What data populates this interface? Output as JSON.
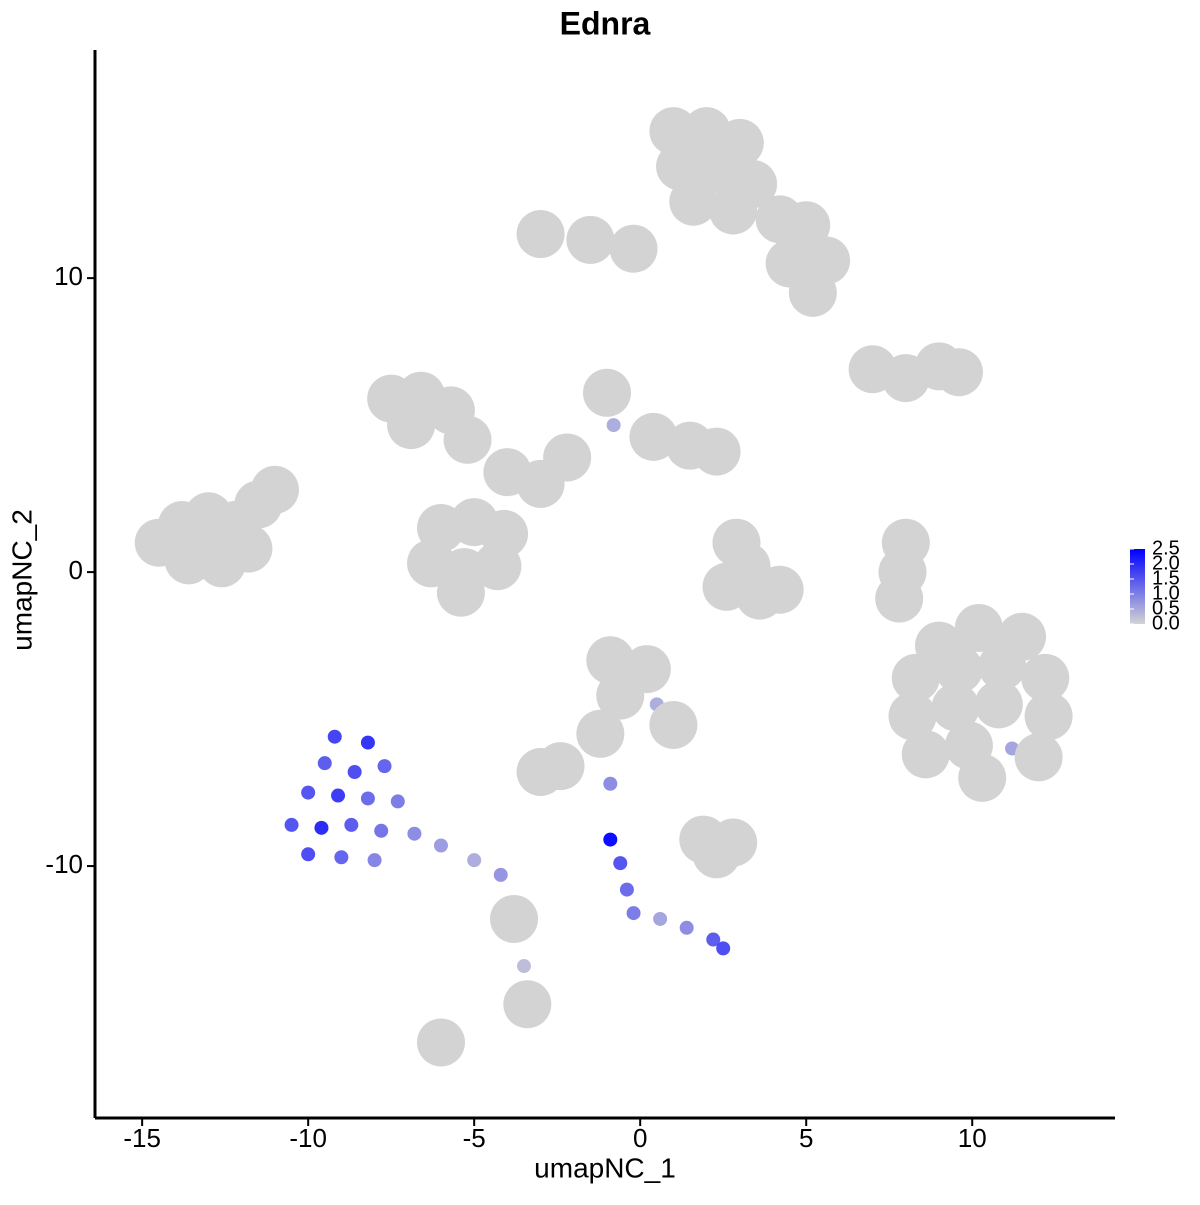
{
  "chart_data": {
    "type": "scatter",
    "title": "Ednra",
    "x_label": "umapNC_1",
    "y_label": "umapNC_2",
    "x": [
      -14.5,
      -13.8,
      -13.0,
      -12.2,
      -11.5,
      -13.6,
      -12.6,
      -11.8,
      -12.9,
      -11.0,
      1.0,
      2.0,
      3.0,
      1.2,
      2.4,
      3.4,
      1.6,
      2.8,
      4.2,
      5.0,
      5.6,
      5.2,
      -3.0,
      -1.5,
      -0.2,
      4.5,
      -7.5,
      -6.6,
      -5.7,
      -6.9,
      -5.2,
      -6.0,
      -5.0,
      -4.1,
      -6.3,
      -5.3,
      -4.3,
      -5.4,
      -4.0,
      -3.0,
      -2.2,
      -1.0,
      -0.8,
      0.4,
      1.5,
      2.3,
      9.0,
      10.2,
      11.5,
      8.3,
      9.6,
      10.9,
      12.2,
      8.2,
      9.5,
      10.8,
      12.3,
      8.6,
      9.9,
      11.2,
      12.0,
      10.3,
      7.0,
      8.0,
      9.0,
      9.6,
      8.0,
      7.9,
      7.8,
      2.9,
      3.2,
      2.6,
      3.6,
      4.2,
      -0.9,
      0.2,
      -0.6,
      0.5,
      1.0,
      -1.2,
      -2.4,
      -3.0,
      1.9,
      2.8,
      2.3,
      -0.9,
      -9.2,
      -8.2,
      -9.5,
      -8.6,
      -7.7,
      -10.0,
      -9.1,
      -8.2,
      -7.3,
      -10.5,
      -9.6,
      -8.7,
      -7.8,
      -6.8,
      -10.0,
      -9.0,
      -8.0,
      -6.0,
      -5.0,
      -4.2,
      -3.8,
      -3.5,
      -3.4,
      -6.0,
      -0.9,
      -0.6,
      -0.4,
      -0.2,
      0.6,
      1.4,
      2.2,
      2.5
    ],
    "y": [
      1.0,
      1.6,
      1.9,
      1.6,
      2.3,
      0.4,
      0.3,
      0.8,
      1.1,
      2.8,
      15.0,
      15.0,
      14.6,
      13.8,
      13.7,
      13.2,
      12.6,
      12.3,
      12.0,
      11.8,
      10.6,
      9.5,
      11.5,
      11.3,
      11.0,
      10.5,
      5.9,
      6.0,
      5.5,
      5.0,
      4.5,
      1.5,
      1.7,
      1.3,
      0.3,
      0.0,
      0.2,
      -0.7,
      3.4,
      3.0,
      3.9,
      6.1,
      5.0,
      4.6,
      4.3,
      4.1,
      -2.5,
      -1.9,
      -2.2,
      -3.6,
      -3.3,
      -3.2,
      -3.6,
      -4.9,
      -4.6,
      -4.5,
      -4.9,
      -6.2,
      -5.9,
      -6.0,
      -6.3,
      -7.0,
      6.9,
      6.6,
      7.0,
      6.8,
      1.0,
      0.0,
      -0.9,
      1.0,
      0.2,
      -0.5,
      -0.8,
      -0.6,
      -3.0,
      -3.3,
      -4.2,
      -4.5,
      -5.2,
      -5.5,
      -6.6,
      -6.8,
      -9.1,
      -9.2,
      -9.6,
      -7.2,
      -5.6,
      -5.8,
      -6.5,
      -6.8,
      -6.6,
      -7.5,
      -7.6,
      -7.7,
      -7.8,
      -8.6,
      -8.7,
      -8.6,
      -8.8,
      -8.9,
      -9.6,
      -9.7,
      -9.8,
      -9.3,
      -9.8,
      -10.3,
      -11.8,
      -13.4,
      -14.7,
      -16.0,
      -9.1,
      -9.9,
      -10.8,
      -11.6,
      -11.8,
      -12.1,
      -12.5,
      -12.8
    ],
    "values": [
      0,
      0,
      0,
      0,
      0,
      0,
      0,
      0,
      0,
      0,
      0,
      0,
      0,
      0,
      0,
      0,
      0,
      0,
      0,
      0,
      0,
      0,
      0,
      0,
      0,
      0,
      0,
      0,
      0,
      0,
      0,
      0,
      0,
      0,
      0,
      0,
      0,
      0,
      0,
      0,
      0,
      0,
      0.5,
      0,
      0,
      0,
      0,
      0,
      0,
      0,
      0,
      0,
      0,
      0,
      0,
      0,
      0,
      0,
      0,
      0.6,
      0,
      0,
      0,
      0,
      0,
      0,
      0,
      0,
      0,
      0,
      0,
      0,
      0,
      0,
      0,
      0,
      0,
      0.5,
      0,
      0,
      0,
      0,
      0,
      0,
      0,
      0.9,
      1.8,
      2.0,
      1.5,
      1.7,
      1.4,
      1.6,
      1.9,
      1.3,
      1.1,
      1.6,
      2.1,
      1.5,
      1.2,
      0.9,
      1.7,
      1.4,
      1.0,
      0.7,
      0.5,
      0.8,
      0,
      0.3,
      0,
      0,
      2.5,
      1.6,
      1.3,
      1.1,
      0.6,
      0.9,
      1.5,
      1.7
    ],
    "xlim": [
      -16.42,
      14.3
    ],
    "ylim": [
      -18.57,
      17.76
    ],
    "xticks": [
      -15,
      -10,
      -5,
      0,
      5,
      10
    ],
    "yticks": [
      -10,
      0,
      10
    ],
    "color_low": "#d3d3d3",
    "color_high": "#0000ff",
    "clim": [
      0,
      2.5
    ],
    "colorbar_ticks": [
      {
        "value": 0,
        "label": "0.0"
      },
      {
        "value": 0.5,
        "label": "0.5"
      },
      {
        "value": 1,
        "label": "1.0"
      },
      {
        "value": 1.5,
        "label": "1.5"
      },
      {
        "value": 2,
        "label": "2.0"
      },
      {
        "value": 2.5,
        "label": "2.5"
      }
    ],
    "legend_position": "right"
  }
}
